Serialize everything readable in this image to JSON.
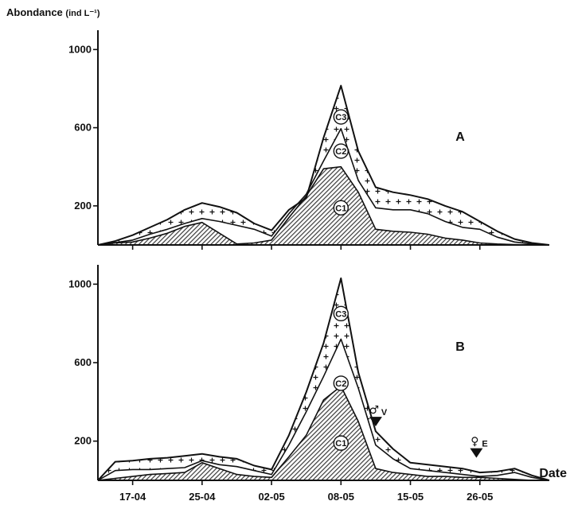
{
  "y_axis_title": {
    "main": "Abondance",
    "unit": "(ind L⁻¹)"
  },
  "x_axis_title": "Date",
  "colors": {
    "line": "#111111",
    "hatch": "#444444",
    "background": "#ffffff"
  },
  "chart_data": [
    {
      "type": "area",
      "panel_label": "A",
      "ylim": [
        0,
        1050
      ],
      "y_ticks": [
        "200",
        "600",
        "1000"
      ],
      "y_tick_values": [
        200,
        600,
        1000
      ],
      "x_ticks": [
        "17-04",
        "25-04",
        "02-05",
        "08-05",
        "15-05",
        "26-05"
      ],
      "x_tick_positions": [
        1,
        3,
        5,
        7,
        9,
        11
      ],
      "x": [
        0,
        0.5,
        1,
        1.5,
        2,
        2.5,
        3,
        3.5,
        4,
        4.5,
        5,
        5.5,
        6,
        6.5,
        7,
        7.5,
        8,
        8.5,
        9,
        9.5,
        10,
        10.5,
        11,
        11.5,
        12,
        12.5,
        13
      ],
      "stage_labels": {
        "C1": "C1",
        "C2": "C2",
        "C3": "C3"
      },
      "series": [
        {
          "name": "C1",
          "values": [
            0,
            10,
            15,
            35,
            60,
            95,
            115,
            60,
            5,
            10,
            25,
            140,
            250,
            390,
            400,
            270,
            80,
            70,
            65,
            55,
            35,
            25,
            10,
            5,
            2,
            0,
            0
          ]
        },
        {
          "name": "C2",
          "values": [
            0,
            12,
            25,
            55,
            80,
            110,
            135,
            120,
            100,
            80,
            45,
            160,
            260,
            430,
            595,
            330,
            190,
            180,
            180,
            160,
            120,
            90,
            80,
            40,
            15,
            5,
            0
          ]
        },
        {
          "name": "C3",
          "values": [
            0,
            20,
            50,
            90,
            130,
            180,
            215,
            195,
            165,
            110,
            75,
            180,
            240,
            550,
            815,
            480,
            295,
            270,
            255,
            235,
            200,
            170,
            120,
            70,
            30,
            10,
            0
          ]
        }
      ],
      "stage_label_points": {
        "C1": [
          7,
          190
        ],
        "C2": [
          7,
          480
        ],
        "C3": [
          7,
          655
        ]
      }
    },
    {
      "type": "area",
      "panel_label": "B",
      "ylim": [
        0,
        1050
      ],
      "y_ticks": [
        "200",
        "600",
        "1000"
      ],
      "y_tick_values": [
        200,
        600,
        1000
      ],
      "x_ticks": [
        "17-04",
        "25-04",
        "02-05",
        "08-05",
        "15-05",
        "26-05"
      ],
      "x_tick_positions": [
        1,
        3,
        5,
        7,
        9,
        11
      ],
      "x": [
        0,
        0.5,
        1,
        1.5,
        2,
        2.5,
        3,
        3.5,
        4,
        4.5,
        5,
        5.5,
        6,
        6.5,
        7,
        7.5,
        8,
        8.5,
        9,
        9.5,
        10,
        10.5,
        11,
        11.5,
        12,
        12.5,
        13
      ],
      "stage_labels": {
        "C1": "C1",
        "C2": "C2",
        "C3": "C3"
      },
      "series": [
        {
          "name": "C1",
          "values": [
            0,
            10,
            20,
            30,
            35,
            40,
            90,
            60,
            30,
            20,
            15,
            120,
            230,
            410,
            480,
            300,
            60,
            40,
            30,
            20,
            20,
            15,
            15,
            10,
            5,
            0,
            0
          ]
        },
        {
          "name": "C2",
          "values": [
            0,
            50,
            55,
            55,
            60,
            65,
            100,
            80,
            70,
            50,
            30,
            180,
            350,
            530,
            720,
            470,
            180,
            110,
            60,
            50,
            40,
            30,
            20,
            25,
            40,
            15,
            0
          ]
        },
        {
          "name": "C3",
          "values": [
            0,
            95,
            100,
            110,
            115,
            125,
            135,
            120,
            110,
            75,
            55,
            230,
            450,
            700,
            1030,
            550,
            250,
            160,
            90,
            80,
            70,
            60,
            40,
            45,
            60,
            25,
            0
          ]
        }
      ],
      "stage_label_points": {
        "C1": [
          7,
          190
        ],
        "C2": [
          7,
          495
        ],
        "C3": [
          7,
          850
        ]
      },
      "markers": [
        {
          "symbol": "♂",
          "suffix": "V",
          "x": 8.0,
          "y_level": 275
        },
        {
          "symbol": "♀",
          "suffix": "E",
          "x": 10.9,
          "y_level": 115
        }
      ]
    }
  ]
}
